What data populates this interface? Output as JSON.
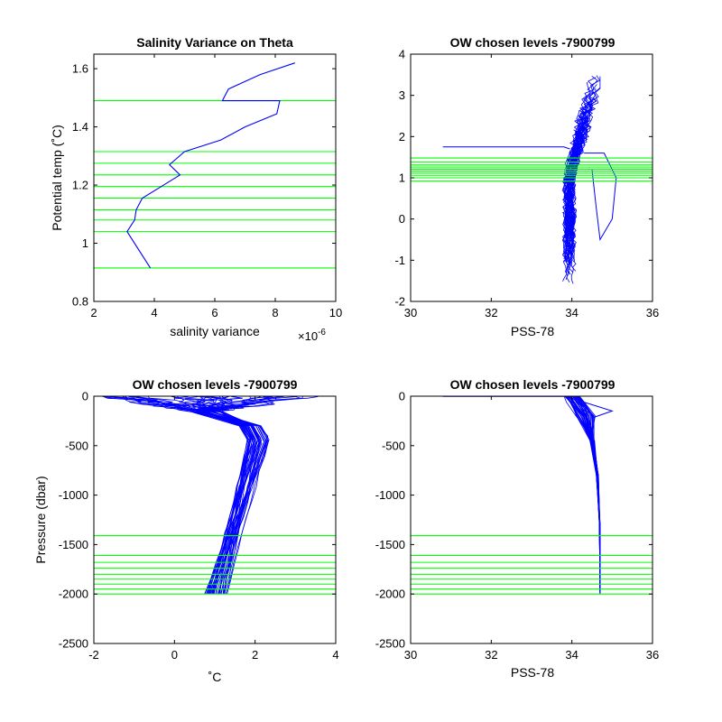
{
  "figure": {
    "colors": {
      "line": "#0000ff",
      "level": "#00ff00",
      "axis": "#000000"
    }
  },
  "chart_data": [
    {
      "type": "line",
      "title": "Salinity Variance on Theta",
      "xlabel": "salinity variance",
      "ylabel": "Potential temp (˚C)",
      "x_exponent_label": "×10",
      "x_exponent_power": "-6",
      "xlim": [
        2,
        10
      ],
      "ylim": [
        0.8,
        1.65
      ],
      "xticks": [
        "2",
        "4",
        "6",
        "8",
        "10"
      ],
      "yticks": [
        "0.8",
        "1",
        "1.2",
        "1.4",
        "1.6"
      ],
      "series": [
        {
          "x": [
            3.87,
            3.1,
            3.35,
            3.4,
            3.6,
            4.15,
            4.85,
            4.5,
            5.0,
            6.2,
            7.0,
            8.05,
            8.15,
            6.25,
            6.45,
            7.5,
            8.65
          ],
          "y": [
            0.915,
            1.04,
            1.08,
            1.115,
            1.155,
            1.19,
            1.235,
            1.27,
            1.315,
            1.355,
            1.4,
            1.445,
            1.49,
            1.49,
            1.53,
            1.58,
            1.62
          ]
        }
      ],
      "levels": [
        0.915,
        1.04,
        1.08,
        1.115,
        1.155,
        1.195,
        1.235,
        1.275,
        1.315,
        1.49
      ]
    },
    {
      "type": "line",
      "title": "OW chosen levels -7900799",
      "xlabel": "PSS-78",
      "ylabel": "",
      "xlim": [
        30,
        36
      ],
      "ylim": [
        -2,
        4
      ],
      "xticks": [
        "30",
        "32",
        "34",
        "36"
      ],
      "yticks": [
        "-2",
        "-1",
        "0",
        "1",
        "2",
        "3",
        "4"
      ],
      "profiles": {
        "count": 40,
        "x_range": [
          33.6,
          34.6
        ],
        "y_range": [
          -1.6,
          3.65
        ]
      },
      "feature_lines": [
        {
          "x": [
            30.8,
            33.8,
            33.95
          ],
          "y": [
            1.75,
            1.75,
            1.7
          ]
        },
        {
          "x": [
            34.3,
            34.8,
            35.1,
            35.0,
            34.7,
            34.6,
            34.5
          ],
          "y": [
            1.6,
            1.6,
            1.0,
            0.0,
            -0.5,
            0.3,
            1.2
          ]
        }
      ],
      "levels": [
        0.92,
        1.0,
        1.06,
        1.11,
        1.16,
        1.21,
        1.26,
        1.31,
        1.38,
        1.48
      ]
    },
    {
      "type": "line",
      "title": "OW chosen levels -7900799",
      "xlabel": "˚C",
      "ylabel": "Pressure (dbar)",
      "xlim": [
        -2,
        4
      ],
      "ylim": [
        -2500,
        0
      ],
      "xticks": [
        "-2",
        "0",
        "2",
        "4"
      ],
      "yticks": [
        "-2500",
        "-2000",
        "-1500",
        "-1000",
        "-500",
        "0"
      ],
      "profiles": {
        "count": 40,
        "surface_temp_range": [
          -1.8,
          3.6
        ],
        "knee_temp_range": [
          1.8,
          2.35
        ],
        "bottom_temp_range": [
          0.75,
          1.3
        ],
        "bottom_pressure": -2000
      },
      "levels": [
        -1410,
        -1610,
        -1680,
        -1740,
        -1800,
        -1850,
        -1900,
        -1950,
        -2000
      ]
    },
    {
      "type": "line",
      "title": "OW chosen levels -7900799",
      "xlabel": "PSS-78",
      "ylabel": "",
      "xlim": [
        30,
        36
      ],
      "ylim": [
        -2500,
        0
      ],
      "xticks": [
        "30",
        "32",
        "34",
        "36"
      ],
      "yticks": [
        "-2500",
        "-2000",
        "-1500",
        "-1000",
        "-500",
        "0"
      ],
      "profiles": {
        "count": 40,
        "surface_sal_range": [
          33.8,
          34.2
        ],
        "deep_sal": 34.7,
        "bottom_pressure": -2000
      },
      "feature_lines": [
        {
          "x": [
            30.8,
            34.0
          ],
          "y": [
            -2,
            -2
          ]
        },
        {
          "x": [
            34.3,
            35.0,
            34.5
          ],
          "y": [
            -60,
            -150,
            -220
          ]
        }
      ],
      "levels": [
        -1410,
        -1610,
        -1680,
        -1740,
        -1800,
        -1850,
        -1900,
        -1950,
        -2000
      ]
    }
  ]
}
